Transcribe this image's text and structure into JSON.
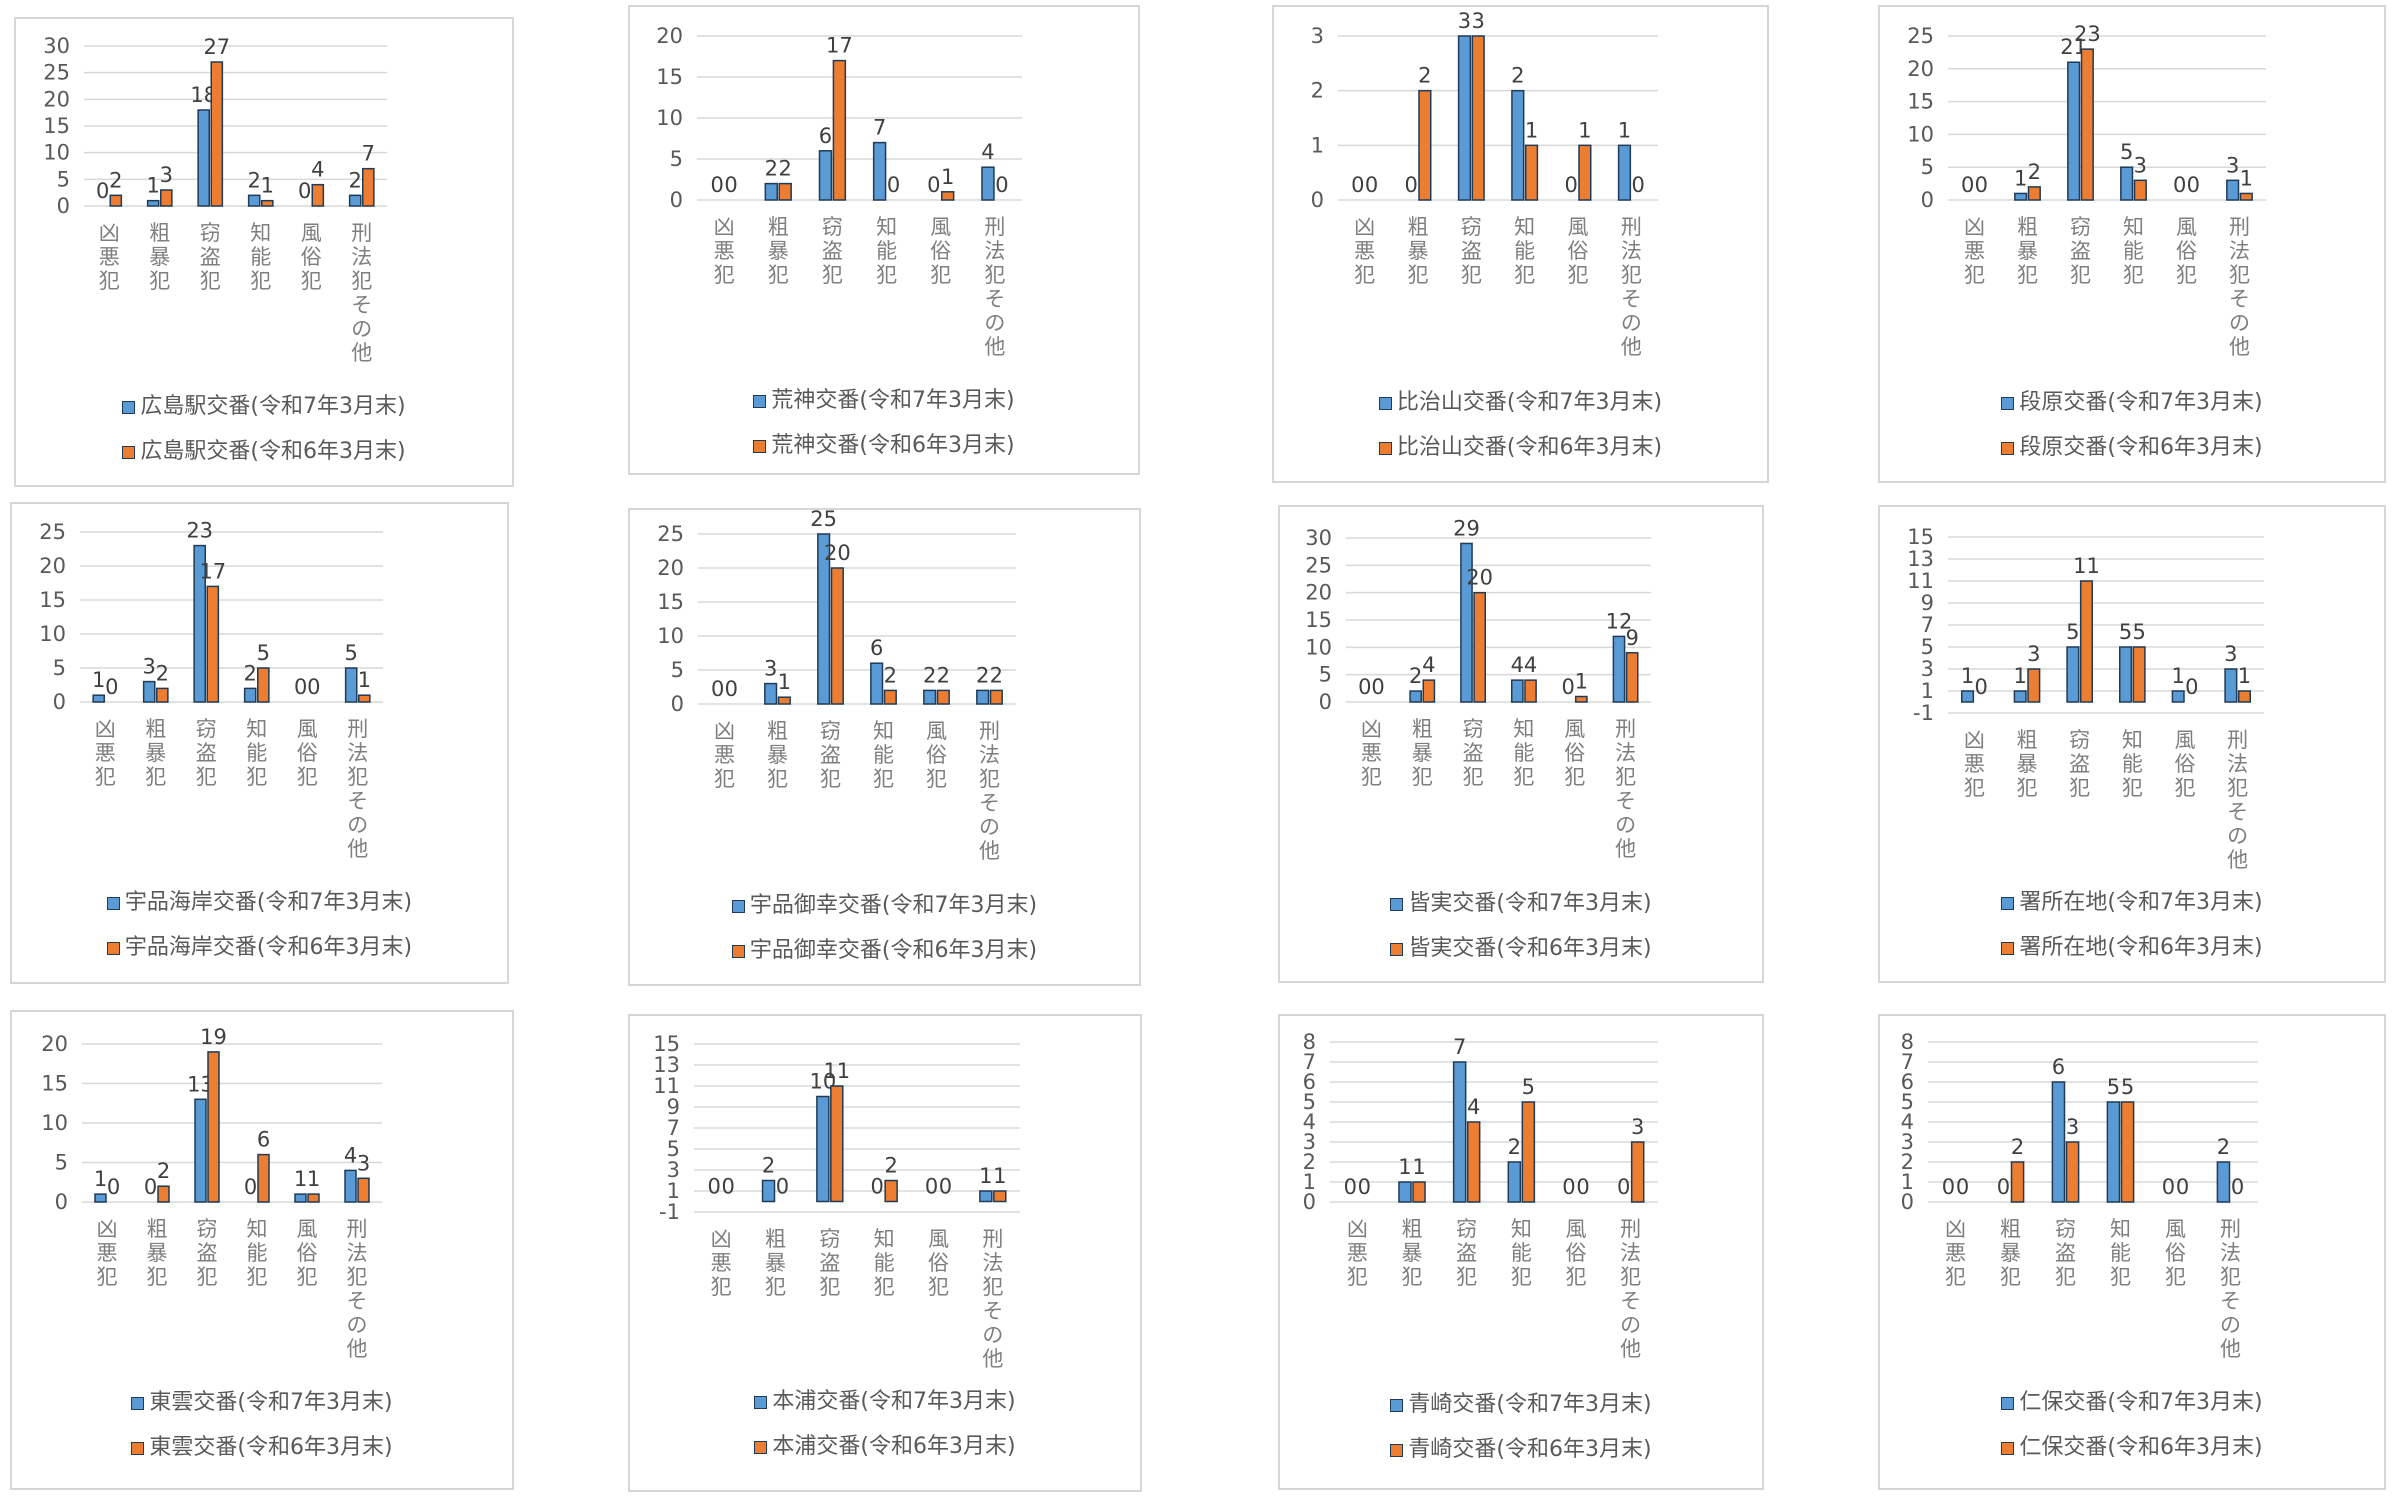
{
  "categories": [
    [
      "凶",
      "悪",
      "犯"
    ],
    [
      "粗",
      "暴",
      "犯"
    ],
    [
      "窃",
      "盗",
      "犯"
    ],
    [
      "知",
      "能",
      "犯"
    ],
    [
      "風",
      "俗",
      "犯"
    ],
    [
      "刑",
      "法",
      "犯",
      "そ",
      "の",
      "他"
    ]
  ],
  "colors": {
    "current": "#5b9bd5",
    "previous": "#ed7d31",
    "current_border": "#1f3b57",
    "previous_border": "#1f3b57",
    "grid": "#d9d9d9"
  },
  "chart_data": [
    {
      "type": "bar",
      "categories": [
        "凶悪犯",
        "粗暴犯",
        "窃盗犯",
        "知能犯",
        "風俗犯",
        "刑法犯その他"
      ],
      "ylim": [
        0,
        30
      ],
      "yticks": [
        0,
        5,
        10,
        15,
        20,
        25,
        30
      ],
      "series": [
        {
          "name": "広島駅交番(令和7年3月末)",
          "values": [
            0,
            1,
            18,
            2,
            0,
            2
          ]
        },
        {
          "name": "広島駅交番(令和6年3月末)",
          "values": [
            2,
            3,
            27,
            1,
            4,
            7
          ]
        }
      ]
    },
    {
      "type": "bar",
      "categories": [
        "凶悪犯",
        "粗暴犯",
        "窃盗犯",
        "知能犯",
        "風俗犯",
        "刑法犯その他"
      ],
      "ylim": [
        0,
        20
      ],
      "yticks": [
        0,
        5,
        10,
        15,
        20
      ],
      "series": [
        {
          "name": "荒神交番(令和7年3月末)",
          "values": [
            0,
            2,
            6,
            7,
            0,
            4
          ]
        },
        {
          "name": "荒神交番(令和6年3月末)",
          "values": [
            0,
            2,
            17,
            0,
            1,
            0
          ]
        }
      ]
    },
    {
      "type": "bar",
      "categories": [
        "凶悪犯",
        "粗暴犯",
        "窃盗犯",
        "知能犯",
        "風俗犯",
        "刑法犯その他"
      ],
      "ylim": [
        0,
        3
      ],
      "yticks": [
        0,
        1,
        2,
        3
      ],
      "series": [
        {
          "name": "比治山交番(令和7年3月末)",
          "values": [
            0,
            0,
            3,
            2,
            0,
            1
          ]
        },
        {
          "name": "比治山交番(令和6年3月末)",
          "values": [
            0,
            2,
            3,
            1,
            1,
            0
          ]
        }
      ]
    },
    {
      "type": "bar",
      "categories": [
        "凶悪犯",
        "粗暴犯",
        "窃盗犯",
        "知能犯",
        "風俗犯",
        "刑法犯その他"
      ],
      "ylim": [
        0,
        25
      ],
      "yticks": [
        0,
        5,
        10,
        15,
        20,
        25
      ],
      "series": [
        {
          "name": "段原交番(令和7年3月末)",
          "values": [
            0,
            1,
            21,
            5,
            0,
            3
          ]
        },
        {
          "name": "段原交番(令和6年3月末)",
          "values": [
            0,
            2,
            23,
            3,
            0,
            1
          ]
        }
      ]
    },
    {
      "type": "bar",
      "categories": [
        "凶悪犯",
        "粗暴犯",
        "窃盗犯",
        "知能犯",
        "風俗犯",
        "刑法犯その他"
      ],
      "ylim": [
        0,
        25
      ],
      "yticks": [
        0,
        5,
        10,
        15,
        20,
        25
      ],
      "series": [
        {
          "name": "宇品海岸交番(令和7年3月末)",
          "values": [
            1,
            3,
            23,
            2,
            0,
            5
          ]
        },
        {
          "name": "宇品海岸交番(令和6年3月末)",
          "values": [
            0,
            2,
            17,
            5,
            0,
            1
          ]
        }
      ]
    },
    {
      "type": "bar",
      "categories": [
        "凶悪犯",
        "粗暴犯",
        "窃盗犯",
        "知能犯",
        "風俗犯",
        "刑法犯その他"
      ],
      "ylim": [
        0,
        25
      ],
      "yticks": [
        0,
        5,
        10,
        15,
        20,
        25
      ],
      "series": [
        {
          "name": "宇品御幸交番(令和7年3月末)",
          "values": [
            0,
            3,
            25,
            6,
            2,
            2
          ]
        },
        {
          "name": "宇品御幸交番(令和6年3月末)",
          "values": [
            0,
            1,
            20,
            2,
            2,
            2
          ]
        }
      ]
    },
    {
      "type": "bar",
      "categories": [
        "凶悪犯",
        "粗暴犯",
        "窃盗犯",
        "知能犯",
        "風俗犯",
        "刑法犯その他"
      ],
      "ylim": [
        0,
        30
      ],
      "yticks": [
        0,
        5,
        10,
        15,
        20,
        25,
        30
      ],
      "series": [
        {
          "name": "皆実交番(令和7年3月末)",
          "values": [
            0,
            2,
            29,
            4,
            0,
            12
          ]
        },
        {
          "name": "皆実交番(令和6年3月末)",
          "values": [
            0,
            4,
            20,
            4,
            1,
            9
          ]
        }
      ]
    },
    {
      "type": "bar",
      "categories": [
        "凶悪犯",
        "粗暴犯",
        "窃盗犯",
        "知能犯",
        "風俗犯",
        "刑法犯その他"
      ],
      "ylim": [
        -1,
        15
      ],
      "yticks": [
        -1,
        1,
        3,
        5,
        7,
        9,
        11,
        13,
        15
      ],
      "series": [
        {
          "name": "署所在地(令和7年3月末)",
          "values": [
            1,
            1,
            5,
            5,
            1,
            3
          ]
        },
        {
          "name": "署所在地(令和6年3月末)",
          "values": [
            0,
            3,
            11,
            5,
            0,
            1
          ]
        }
      ]
    },
    {
      "type": "bar",
      "categories": [
        "凶悪犯",
        "粗暴犯",
        "窃盗犯",
        "知能犯",
        "風俗犯",
        "刑法犯その他"
      ],
      "ylim": [
        0,
        20
      ],
      "yticks": [
        0,
        5,
        10,
        15,
        20
      ],
      "series": [
        {
          "name": "東雲交番(令和7年3月末)",
          "values": [
            1,
            0,
            13,
            0,
            1,
            4
          ]
        },
        {
          "name": "東雲交番(令和6年3月末)",
          "values": [
            0,
            2,
            19,
            6,
            1,
            3
          ]
        }
      ]
    },
    {
      "type": "bar",
      "categories": [
        "凶悪犯",
        "粗暴犯",
        "窃盗犯",
        "知能犯",
        "風俗犯",
        "刑法犯その他"
      ],
      "ylim": [
        -1,
        15
      ],
      "yticks": [
        -1,
        1,
        3,
        5,
        7,
        9,
        11,
        13,
        15
      ],
      "series": [
        {
          "name": "本浦交番(令和7年3月末)",
          "values": [
            0,
            2,
            10,
            0,
            0,
            1
          ]
        },
        {
          "name": "本浦交番(令和6年3月末)",
          "values": [
            0,
            0,
            11,
            2,
            0,
            1
          ]
        }
      ]
    },
    {
      "type": "bar",
      "categories": [
        "凶悪犯",
        "粗暴犯",
        "窃盗犯",
        "知能犯",
        "風俗犯",
        "刑法犯その他"
      ],
      "ylim": [
        0,
        8
      ],
      "yticks": [
        0,
        1,
        2,
        3,
        4,
        5,
        6,
        7,
        8
      ],
      "series": [
        {
          "name": "青崎交番(令和7年3月末)",
          "values": [
            0,
            1,
            7,
            2,
            0,
            0
          ]
        },
        {
          "name": "青崎交番(令和6年3月末)",
          "values": [
            0,
            1,
            4,
            5,
            0,
            3
          ]
        }
      ]
    },
    {
      "type": "bar",
      "categories": [
        "凶悪犯",
        "粗暴犯",
        "窃盗犯",
        "知能犯",
        "風俗犯",
        "刑法犯その他"
      ],
      "ylim": [
        0,
        8
      ],
      "yticks": [
        0,
        1,
        2,
        3,
        4,
        5,
        6,
        7,
        8
      ],
      "series": [
        {
          "name": "仁保交番(令和7年3月末)",
          "values": [
            0,
            0,
            6,
            5,
            0,
            2
          ]
        },
        {
          "name": "仁保交番(令和6年3月末)",
          "values": [
            0,
            2,
            3,
            5,
            0,
            0
          ]
        }
      ]
    }
  ]
}
